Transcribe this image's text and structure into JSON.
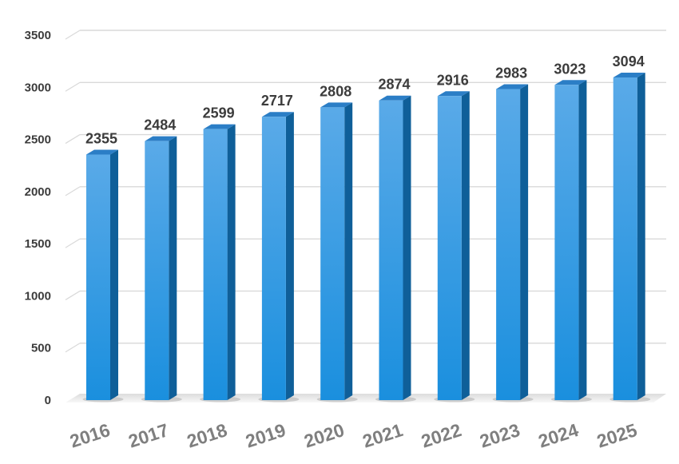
{
  "chart_data": {
    "type": "bar",
    "style": "3d-column",
    "categories": [
      "2016",
      "2017",
      "2018",
      "2019",
      "2020",
      "2021",
      "2022",
      "2023",
      "2024",
      "2025"
    ],
    "values": [
      2355,
      2484,
      2599,
      2717,
      2808,
      2874,
      2916,
      2983,
      3023,
      3094
    ],
    "data_labels": [
      "2355",
      "2484",
      "2599",
      "2717",
      "2808",
      "2874",
      "2916",
      "2983",
      "3023",
      "3094"
    ],
    "yticks": [
      "0",
      "500",
      "1000",
      "1500",
      "2000",
      "2500",
      "3000",
      "3500"
    ],
    "ylim": [
      0,
      3500
    ],
    "title": "",
    "xlabel": "",
    "ylabel": "",
    "grid": true,
    "legend": "none",
    "colors": {
      "bar_front": "#1a8fde",
      "bar_front_light": "#5aaae8",
      "bar_side": "#0f5f99",
      "bar_top": "#2b7ec6",
      "gridline": "#d9d9d9",
      "ytick_text": "#3c3c3c",
      "xtick_text": "#7f7f7f",
      "label_text": "#3c3c3c"
    }
  }
}
